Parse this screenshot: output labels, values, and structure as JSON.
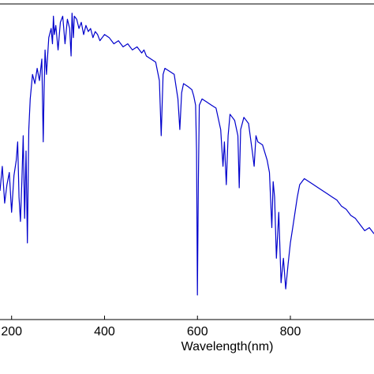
{
  "chart_data": {
    "type": "line",
    "title": "",
    "xlabel": "Wavelength(nm)",
    "ylabel": "",
    "xlim": [
      175,
      980
    ],
    "ylim": [
      0,
      1.03
    ],
    "grid": false,
    "legend": "none",
    "x_ticks": [
      {
        "value": 200,
        "label": "200"
      },
      {
        "value": 400,
        "label": "400"
      },
      {
        "value": 600,
        "label": "600"
      },
      {
        "value": 800,
        "label": "800"
      }
    ],
    "series": [
      {
        "color": "#0000cc",
        "x": [
          175,
          180,
          185,
          190,
          195,
          200,
          205,
          210,
          213,
          216,
          219,
          222,
          225,
          228,
          231,
          234,
          237,
          240,
          245,
          250,
          255,
          260,
          265,
          268,
          270,
          272,
          275,
          280,
          285,
          288,
          290,
          292,
          295,
          300,
          305,
          310,
          315,
          320,
          325,
          328,
          330,
          333,
          335,
          340,
          345,
          350,
          355,
          360,
          365,
          370,
          375,
          380,
          385,
          390,
          395,
          400,
          410,
          420,
          430,
          440,
          450,
          460,
          470,
          480,
          485,
          490,
          500,
          510,
          518,
          522,
          526,
          530,
          540,
          550,
          558,
          562,
          566,
          570,
          580,
          588,
          592,
          596,
          598,
          600,
          602,
          604,
          610,
          620,
          630,
          640,
          650,
          655,
          658,
          662,
          666,
          670,
          680,
          687,
          690,
          693,
          700,
          710,
          718,
          722,
          726,
          730,
          740,
          750,
          755,
          760,
          763,
          766,
          770,
          775,
          780,
          785,
          790,
          795,
          800,
          805,
          810,
          815,
          820,
          830,
          840,
          850,
          860,
          870,
          880,
          890,
          900,
          910,
          920,
          930,
          940,
          950,
          960,
          970,
          980
        ],
        "y": [
          0.42,
          0.5,
          0.38,
          0.44,
          0.48,
          0.35,
          0.47,
          0.52,
          0.58,
          0.4,
          0.32,
          0.45,
          0.6,
          0.33,
          0.55,
          0.25,
          0.62,
          0.72,
          0.8,
          0.77,
          0.82,
          0.78,
          0.85,
          0.58,
          0.75,
          0.88,
          0.8,
          0.92,
          0.95,
          0.9,
          0.99,
          0.93,
          0.96,
          0.88,
          0.97,
          0.99,
          0.9,
          0.98,
          0.95,
          0.86,
          1.0,
          0.92,
          0.99,
          0.98,
          0.95,
          0.97,
          0.93,
          0.96,
          0.94,
          0.95,
          0.92,
          0.94,
          0.93,
          0.91,
          0.92,
          0.93,
          0.92,
          0.9,
          0.91,
          0.89,
          0.9,
          0.88,
          0.89,
          0.87,
          0.88,
          0.86,
          0.85,
          0.84,
          0.78,
          0.6,
          0.8,
          0.82,
          0.81,
          0.8,
          0.72,
          0.62,
          0.74,
          0.77,
          0.76,
          0.75,
          0.73,
          0.7,
          0.55,
          0.08,
          0.45,
          0.7,
          0.72,
          0.71,
          0.7,
          0.69,
          0.62,
          0.5,
          0.58,
          0.44,
          0.6,
          0.67,
          0.65,
          0.6,
          0.43,
          0.62,
          0.66,
          0.64,
          0.55,
          0.5,
          0.6,
          0.58,
          0.57,
          0.52,
          0.48,
          0.3,
          0.45,
          0.4,
          0.2,
          0.35,
          0.12,
          0.2,
          0.1,
          0.18,
          0.25,
          0.3,
          0.35,
          0.4,
          0.44,
          0.46,
          0.45,
          0.44,
          0.43,
          0.42,
          0.41,
          0.4,
          0.39,
          0.37,
          0.36,
          0.34,
          0.33,
          0.31,
          0.29,
          0.3,
          0.28
        ]
      }
    ]
  }
}
